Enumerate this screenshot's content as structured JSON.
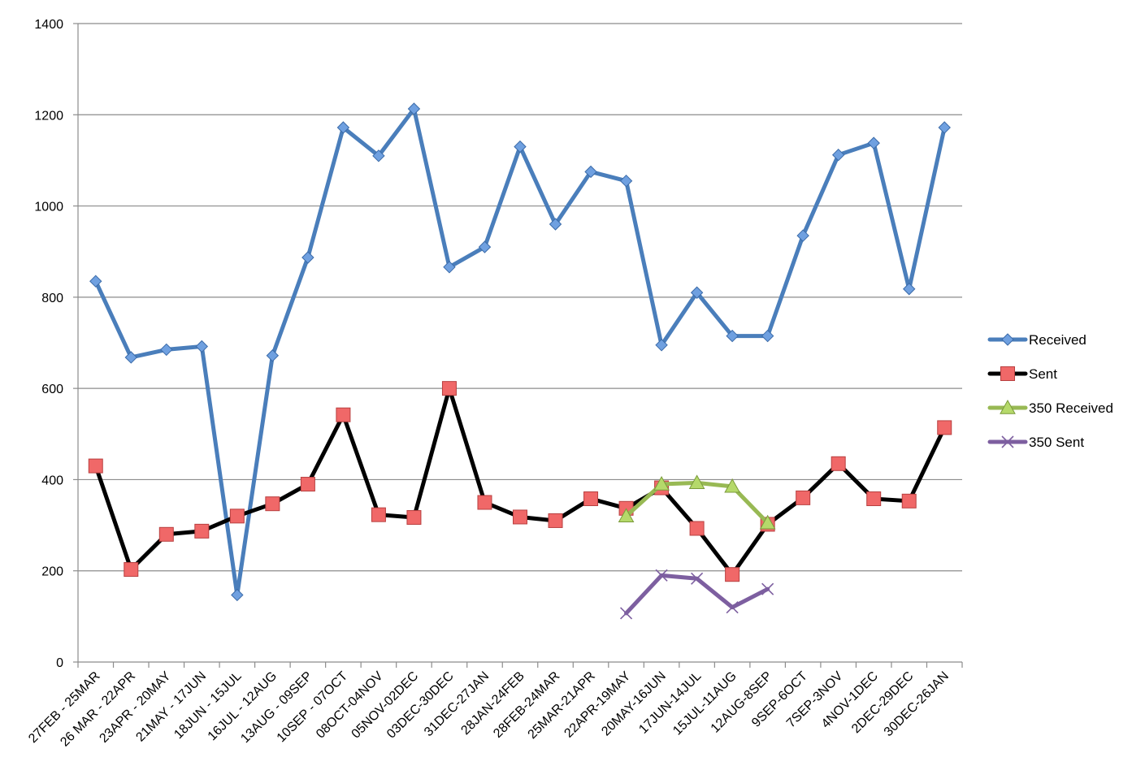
{
  "chart_data": {
    "type": "line",
    "title": "",
    "xlabel": "",
    "ylabel": "",
    "ylim": [
      0,
      1400
    ],
    "yticks": [
      0,
      200,
      400,
      600,
      800,
      1000,
      1200,
      1400
    ],
    "grid": "horizontal",
    "legend_position": "right",
    "categories": [
      "27FEB - 25MAR",
      "26 MAR - 22APR",
      "23APR - 20MAY",
      "21MAY - 17JUN",
      "18JUN - 15JUL",
      "16JUL - 12AUG",
      "13AUG - 09SEP",
      "10SEP - 07OCT",
      "08OCT-04NOV",
      "05NOV-02DEC",
      "03DEC-30DEC",
      "31DEC-27JAN",
      "28JAN-24FEB",
      "28FEB-24MAR",
      "25MAR-21APR",
      "22APR-19MAY",
      "20MAY-16JUN",
      "17JUN-14JUL",
      "15JUL-11AUG",
      "12AUG-8SEP",
      "9SEP-6OCT",
      "7SEP-3NOV",
      "4NOV-1DEC",
      "2DEC-29DEC",
      "30DEC-26JAN"
    ],
    "series": [
      {
        "name": "Received",
        "color": "#4a7ebb",
        "marker": "diamond",
        "marker_fill": "#6fa0e0",
        "values": [
          835,
          668,
          685,
          692,
          147,
          672,
          887,
          1172,
          1110,
          1213,
          866,
          910,
          1130,
          960,
          1075,
          1055,
          695,
          810,
          715,
          715,
          935,
          1112,
          1138,
          818,
          1172
        ]
      },
      {
        "name": "Sent",
        "color": "#000000",
        "marker": "square",
        "marker_fill": "#f06868",
        "values": [
          430,
          203,
          280,
          287,
          320,
          347,
          390,
          542,
          323,
          317,
          600,
          350,
          318,
          310,
          358,
          337,
          382,
          293,
          192,
          302,
          360,
          435,
          358,
          353,
          514
        ]
      },
      {
        "name": "350 Received",
        "color": "#98b954",
        "marker": "triangle",
        "marker_fill": "#b5d96a",
        "values": [
          null,
          null,
          null,
          null,
          null,
          null,
          null,
          null,
          null,
          null,
          null,
          null,
          null,
          null,
          null,
          320,
          390,
          393,
          385,
          305,
          null,
          null,
          null,
          null,
          null
        ]
      },
      {
        "name": "350 Sent",
        "color": "#7d5fa0",
        "marker": "x",
        "marker_fill": "#7d5fa0",
        "values": [
          null,
          null,
          null,
          null,
          null,
          null,
          null,
          null,
          null,
          null,
          null,
          null,
          null,
          null,
          null,
          107,
          190,
          183,
          120,
          160,
          null,
          null,
          null,
          null,
          null
        ]
      }
    ]
  }
}
